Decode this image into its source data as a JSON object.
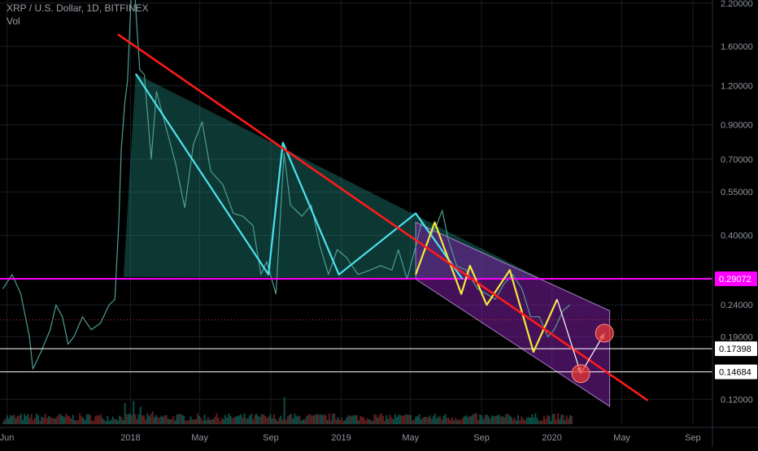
{
  "header": {
    "symbol_line": "XRP / U.S. Dollar, 1D, BITFINEX",
    "volume_label": "Vol"
  },
  "chart_data": {
    "type": "line",
    "y_scale": "log",
    "ylim": [
      0.1,
      2.25
    ],
    "xlim": [
      "2017-05-20",
      "2020-10-05"
    ],
    "y_ticks": [
      "2.20000",
      "1.60000",
      "1.20000",
      "0.90000",
      "0.70000",
      "0.55000",
      "0.40000",
      "0.24000",
      "0.19000",
      "0.12000"
    ],
    "x_ticks": [
      {
        "label": "Jun",
        "date": "2017-06-01"
      },
      {
        "label": "2018",
        "date": "2018-01-01"
      },
      {
        "label": "May",
        "date": "2018-05-01"
      },
      {
        "label": "Sep",
        "date": "2018-09-01"
      },
      {
        "label": "2019",
        "date": "2019-01-01"
      },
      {
        "label": "May",
        "date": "2019-05-01"
      },
      {
        "label": "Sep",
        "date": "2019-09-01"
      },
      {
        "label": "2020",
        "date": "2020-01-01"
      },
      {
        "label": "May",
        "date": "2020-05-01"
      },
      {
        "label": "Sep",
        "date": "2020-09-01"
      }
    ],
    "price_labels": [
      {
        "text": "0.29072",
        "value": 0.29072,
        "color": "#ff00ff",
        "text_color": "#ffffff",
        "role": "support-horizontal"
      },
      {
        "text": "0.17398",
        "value": 0.17398,
        "color": "#ffffff",
        "text_color": "#000000",
        "role": "level-1"
      },
      {
        "text": "0.14684",
        "value": 0.14684,
        "color": "#ffffff",
        "text_color": "#000000",
        "role": "level-2"
      }
    ],
    "dotted_level": {
      "value": 0.215,
      "color": "#c0392b"
    },
    "price_series": [
      [
        "2017-05-25",
        0.27
      ],
      [
        "2017-06-10",
        0.3
      ],
      [
        "2017-06-25",
        0.26
      ],
      [
        "2017-07-10",
        0.19
      ],
      [
        "2017-07-16",
        0.15
      ],
      [
        "2017-07-30",
        0.17
      ],
      [
        "2017-08-15",
        0.2
      ],
      [
        "2017-08-25",
        0.24
      ],
      [
        "2017-09-05",
        0.22
      ],
      [
        "2017-09-15",
        0.18
      ],
      [
        "2017-09-25",
        0.19
      ],
      [
        "2017-10-10",
        0.22
      ],
      [
        "2017-10-25",
        0.2
      ],
      [
        "2017-11-10",
        0.21
      ],
      [
        "2017-11-25",
        0.24
      ],
      [
        "2017-12-05",
        0.25
      ],
      [
        "2017-12-12",
        0.45
      ],
      [
        "2017-12-16",
        0.75
      ],
      [
        "2017-12-22",
        1.05
      ],
      [
        "2017-12-27",
        1.25
      ],
      [
        "2018-01-01",
        2.05
      ],
      [
        "2018-01-04",
        2.8
      ],
      [
        "2018-01-08",
        2.45
      ],
      [
        "2018-01-12",
        1.85
      ],
      [
        "2018-01-17",
        1.35
      ],
      [
        "2018-01-25",
        1.3
      ],
      [
        "2018-02-06",
        0.7
      ],
      [
        "2018-02-15",
        1.15
      ],
      [
        "2018-03-01",
        0.92
      ],
      [
        "2018-03-20",
        0.68
      ],
      [
        "2018-04-05",
        0.49
      ],
      [
        "2018-04-20",
        0.78
      ],
      [
        "2018-05-05",
        0.92
      ],
      [
        "2018-05-20",
        0.64
      ],
      [
        "2018-06-10",
        0.58
      ],
      [
        "2018-06-28",
        0.47
      ],
      [
        "2018-07-15",
        0.46
      ],
      [
        "2018-08-01",
        0.43
      ],
      [
        "2018-08-15",
        0.3
      ],
      [
        "2018-08-25",
        0.33
      ],
      [
        "2018-09-10",
        0.26
      ],
      [
        "2018-09-20",
        0.55
      ],
      [
        "2018-09-24",
        0.73
      ],
      [
        "2018-10-05",
        0.5
      ],
      [
        "2018-10-25",
        0.46
      ],
      [
        "2018-11-10",
        0.5
      ],
      [
        "2018-11-25",
        0.37
      ],
      [
        "2018-12-10",
        0.3
      ],
      [
        "2018-12-25",
        0.36
      ],
      [
        "2019-01-10",
        0.34
      ],
      [
        "2019-01-30",
        0.3
      ],
      [
        "2019-02-20",
        0.31
      ],
      [
        "2019-03-10",
        0.32
      ],
      [
        "2019-03-30",
        0.31
      ],
      [
        "2019-04-10",
        0.36
      ],
      [
        "2019-04-25",
        0.29
      ],
      [
        "2019-05-12",
        0.38
      ],
      [
        "2019-05-20",
        0.44
      ],
      [
        "2019-06-05",
        0.4
      ],
      [
        "2019-06-15",
        0.43
      ],
      [
        "2019-06-25",
        0.48
      ],
      [
        "2019-07-05",
        0.39
      ],
      [
        "2019-07-20",
        0.32
      ],
      [
        "2019-08-05",
        0.31
      ],
      [
        "2019-08-25",
        0.27
      ],
      [
        "2019-09-10",
        0.26
      ],
      [
        "2019-09-25",
        0.25
      ],
      [
        "2019-10-10",
        0.28
      ],
      [
        "2019-10-25",
        0.3
      ],
      [
        "2019-11-10",
        0.27
      ],
      [
        "2019-11-25",
        0.22
      ],
      [
        "2019-12-10",
        0.22
      ],
      [
        "2019-12-25",
        0.19
      ],
      [
        "2020-01-05",
        0.2
      ],
      [
        "2020-01-20",
        0.23
      ],
      [
        "2020-02-01",
        0.24
      ]
    ],
    "annotations": {
      "resistance_line": {
        "color": "#ff1a1a",
        "from": [
          "2017-12-10",
          1.75
        ],
        "to": [
          "2020-06-15",
          0.119
        ]
      },
      "descending_triangle": {
        "color": "#26a69a",
        "points": [
          [
            "2017-12-20",
            0.295
          ],
          [
            "2018-01-10",
            1.31
          ],
          [
            "2019-12-15",
            0.29
          ]
        ]
      },
      "channel": {
        "color": "#7b1fa2",
        "points": [
          [
            "2019-05-10",
            0.44
          ],
          [
            "2020-04-10",
            0.23
          ],
          [
            "2020-04-10",
            0.114
          ],
          [
            "2019-05-10",
            0.29
          ]
        ]
      },
      "cyan_zigzag": {
        "color": "#4ae3ef",
        "points": [
          [
            "2018-01-10",
            1.31
          ],
          [
            "2018-08-28",
            0.3
          ],
          [
            "2018-09-22",
            0.79
          ],
          [
            "2018-12-28",
            0.3
          ],
          [
            "2019-05-10",
            0.47
          ],
          [
            "2019-07-30",
            0.29
          ]
        ]
      },
      "yellow_zigzag": {
        "color": "#f5e93b",
        "points": [
          [
            "2019-05-10",
            0.3
          ],
          [
            "2019-06-12",
            0.44
          ],
          [
            "2019-07-28",
            0.26
          ],
          [
            "2019-08-12",
            0.32
          ],
          [
            "2019-09-10",
            0.24
          ],
          [
            "2019-10-20",
            0.31
          ],
          [
            "2019-11-30",
            0.17
          ],
          [
            "2020-01-10",
            0.25
          ]
        ]
      },
      "white_arrows": {
        "color": "#ffffff",
        "points": [
          [
            "2020-01-10",
            0.25
          ],
          [
            "2020-02-20",
            0.145
          ],
          [
            "2020-04-01",
            0.195
          ]
        ]
      },
      "target_circles": [
        {
          "at": [
            "2020-02-20",
            0.145
          ],
          "color": "#e53935"
        },
        {
          "at": [
            "2020-04-01",
            0.195
          ],
          "color": "#e53935"
        }
      ]
    }
  },
  "volume": {
    "base_ratio": 0.06,
    "spikes": [
      [
        "2017-12-20",
        0.9
      ],
      [
        "2018-01-04",
        1.0
      ],
      [
        "2018-01-17",
        0.75
      ],
      [
        "2018-02-06",
        0.55
      ],
      [
        "2018-09-22",
        1.15
      ],
      [
        "2018-10-05",
        0.45
      ],
      [
        "2019-06-25",
        0.35
      ]
    ]
  }
}
